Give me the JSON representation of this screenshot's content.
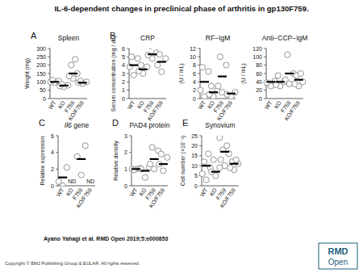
{
  "title": "IL-6-dependent changes in preclinical phase of arthritis in gp130F759.",
  "citation": "Ayano Yahagi et al. RMD Open 2019;5:e000853",
  "copyright": "Copyright © BMJ Publishing Group & EULAR. All rights reserved.",
  "logo": [
    "RMD",
    "Open"
  ],
  "chart_data": [
    {
      "type": "scatter",
      "panel_label": "A",
      "title": "Spleen",
      "y_label": "Weight (mg)",
      "categories": [
        "WT",
        "KO",
        "F759",
        "KO/F759"
      ],
      "values": [
        [
          95,
          100,
          105,
          110
        ],
        [
          70,
          75,
          80,
          85
        ],
        [
          120,
          135,
          150,
          200,
          235
        ],
        [
          90,
          95,
          100,
          105
        ]
      ],
      "means": [
        100,
        78,
        150,
        95
      ],
      "ylim": [
        0,
        300
      ],
      "yticks": [
        0,
        50,
        100,
        150,
        200,
        250,
        300
      ]
    },
    {
      "type": "scatter",
      "panel_label": "B",
      "title": "CRP",
      "y_label": "Serum concentration (mg / dL)",
      "categories": [
        "WT",
        "KO",
        "F759",
        "KO/F759"
      ],
      "values": [
        [
          2.8,
          3.8,
          4.8,
          5.0
        ],
        [
          3.0,
          3.3,
          3.8,
          4.0
        ],
        [
          4.8,
          5.2,
          5.5,
          6.3
        ],
        [
          3.2,
          4.0,
          4.8,
          5.3
        ]
      ],
      "means": [
        4.0,
        3.5,
        5.3,
        4.4
      ],
      "ylim": [
        0,
        6
      ],
      "yticks": [
        0,
        1,
        2,
        3,
        4,
        5,
        6
      ]
    },
    {
      "type": "scatter",
      "title": "RF−IgM",
      "y_label": "(U / mL)",
      "categories": [
        "WT",
        "KO",
        "F759",
        "KO/F759"
      ],
      "values": [
        [
          0.5,
          2,
          6.5,
          7.5
        ],
        [
          0.5,
          1,
          2,
          3
        ],
        [
          1.5,
          3,
          8,
          10
        ],
        [
          0.5,
          1,
          1.5
        ]
      ],
      "means": [
        4,
        1.5,
        5.3,
        1.2
      ],
      "ylim": [
        0,
        12
      ],
      "yticks": [
        0,
        2,
        4,
        6,
        8,
        10,
        12
      ]
    },
    {
      "type": "scatter",
      "title": "Anti−CCP−IgM",
      "y_label": "(U / mL)",
      "categories": [
        "WT",
        "KO",
        "F759",
        "KO/F759"
      ],
      "values": [
        [
          30,
          38,
          42
        ],
        [
          30,
          33,
          40,
          55
        ],
        [
          35,
          45,
          60,
          105
        ],
        [
          30,
          35,
          40,
          55,
          60
        ]
      ],
      "means": [
        40,
        40,
        60,
        45
      ],
      "ylim": [
        0,
        120
      ],
      "yticks": [
        0,
        20,
        40,
        60,
        80,
        100,
        120
      ]
    },
    {
      "type": "scatter",
      "panel_label": "C",
      "title": "Il6 gene",
      "y_label": "Relative expression",
      "categories": [
        "WT",
        "KO",
        "F759",
        "KO/F759"
      ],
      "values": [
        [
          0,
          0.5,
          2.2
        ],
        [],
        [
          1.3,
          3.5,
          4.8
        ],
        []
      ],
      "means": [
        1.0,
        null,
        3.2,
        null
      ],
      "annotations": [
        null,
        "ND",
        null,
        "ND"
      ],
      "ylim": [
        0,
        6
      ],
      "yticks": [
        0,
        2,
        4,
        6
      ]
    },
    {
      "type": "scatter",
      "panel_label": "D",
      "title": "PAD4 protein",
      "y_label": "Relative density",
      "categories": [
        "WT",
        "KO",
        "F759",
        "KO/F759"
      ],
      "values": [
        [
          1.0,
          1.0,
          1.05,
          0.95
        ],
        [
          0.5,
          1.0,
          1.1
        ],
        [
          1.0,
          1.3,
          2.1,
          2.3
        ],
        [
          0.9,
          1.3,
          1.7,
          1.9
        ]
      ],
      "means": [
        1.0,
        0.9,
        1.6,
        1.3
      ],
      "ylim": [
        0,
        3
      ],
      "yticks": [
        0,
        1,
        2,
        3
      ]
    },
    {
      "type": "scatter",
      "panel_label": "E",
      "title": "Synovium",
      "y_label": "Cell number (×10⁻³)",
      "categories": [
        "WT",
        "KO",
        "F759",
        "KO/F759"
      ],
      "values": [
        [
          3,
          6,
          9,
          12,
          16
        ],
        [
          5,
          7,
          9,
          13
        ],
        [
          10,
          13,
          16,
          18,
          20,
          24
        ],
        [
          8,
          9,
          11,
          12,
          13
        ]
      ],
      "means": [
        10,
        7,
        17,
        11
      ],
      "ylim": [
        0,
        25
      ],
      "yticks": [
        0,
        5,
        10,
        15,
        20,
        25
      ]
    }
  ]
}
